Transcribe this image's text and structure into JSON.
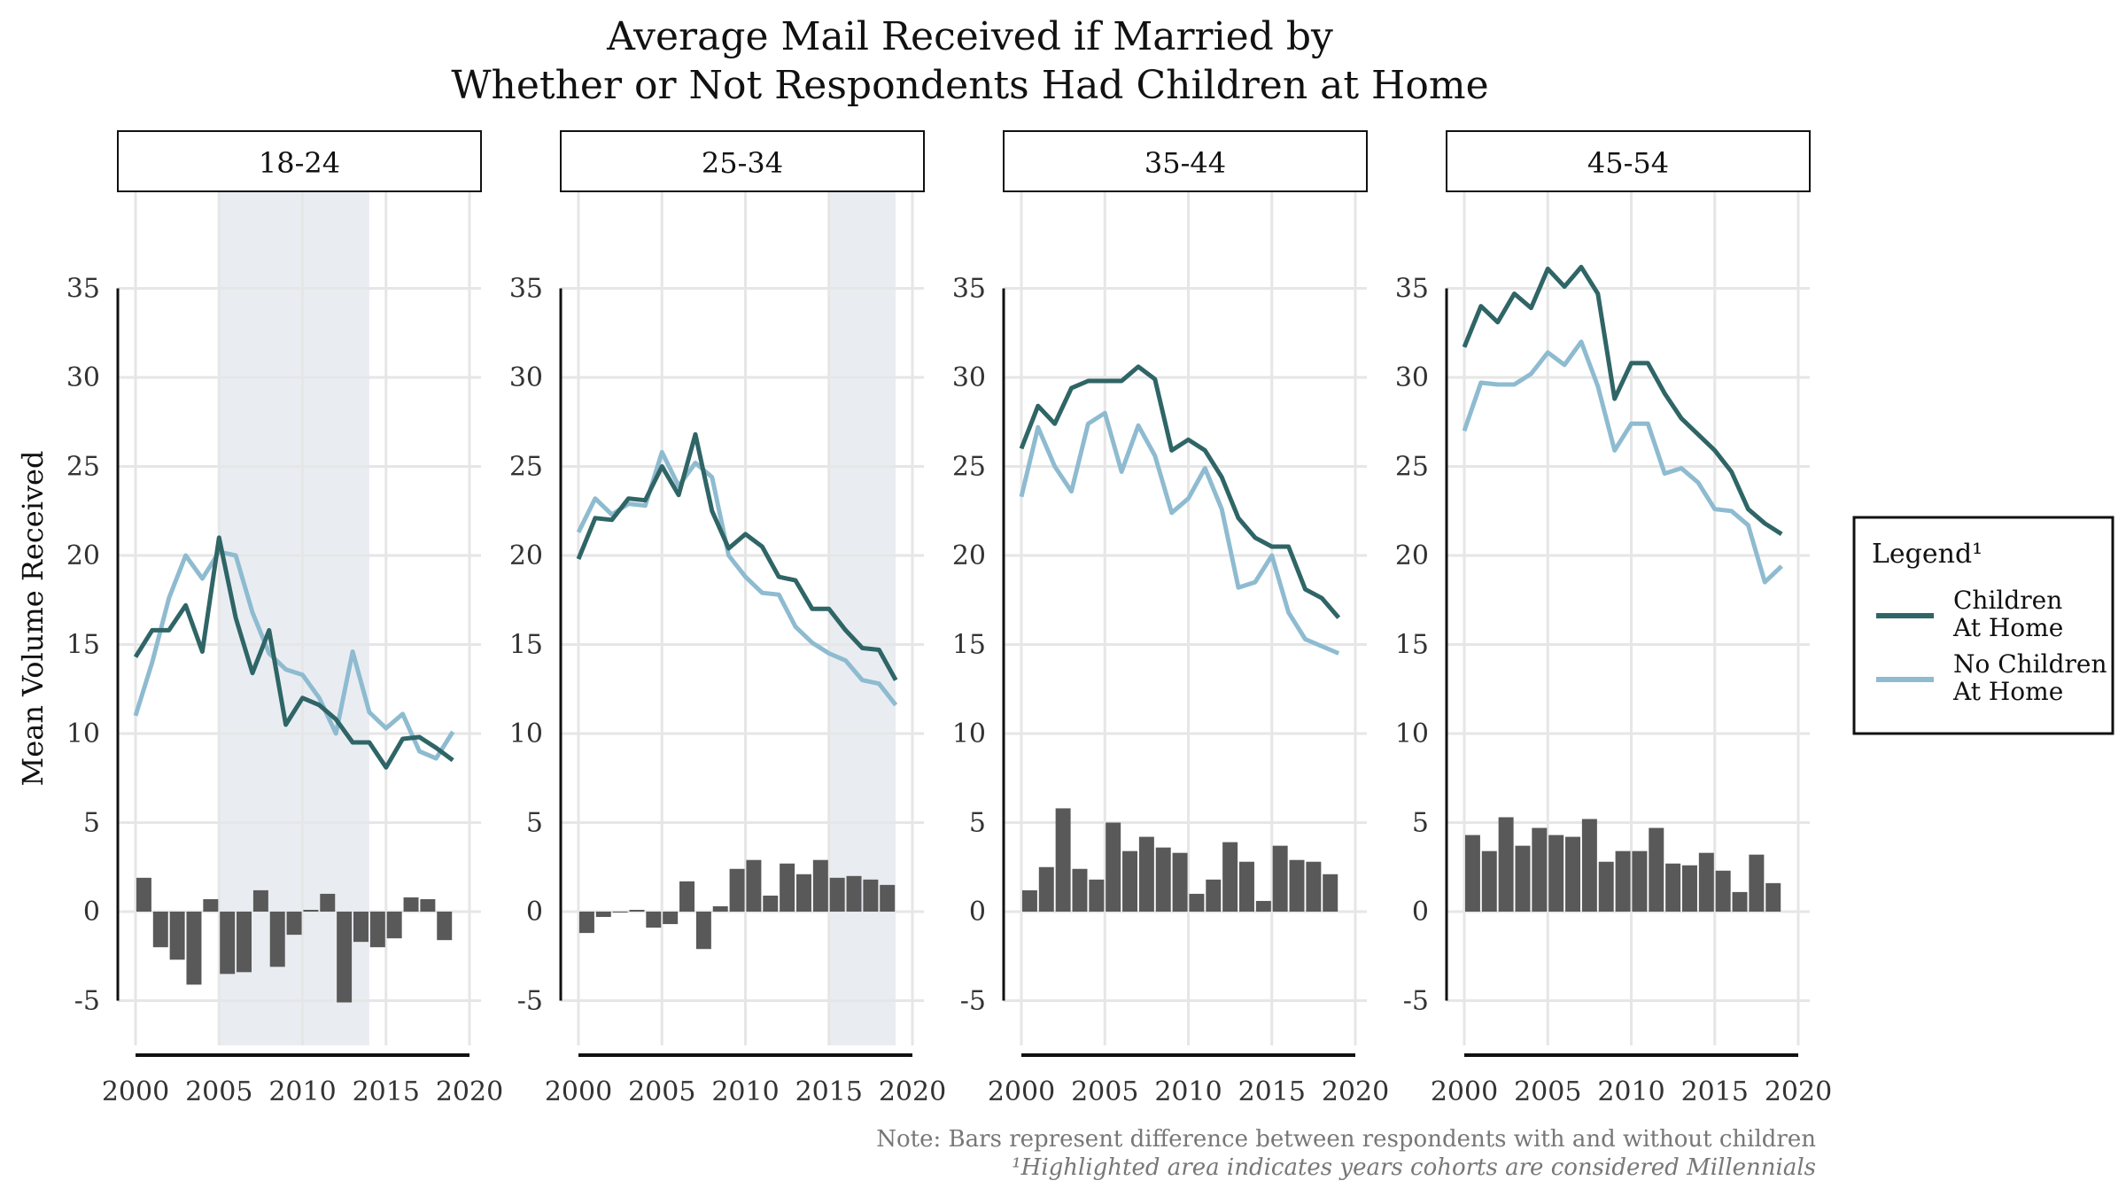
{
  "chart_data": {
    "type": "line",
    "title_lines": [
      "Average Mail Received if Married by",
      "Whether or Not Respondents Had Children at Home"
    ],
    "ylabel": "Mean Volume Received",
    "xlabel": "",
    "xlim": [
      1999,
      2020
    ],
    "ylim": [
      -7,
      37
    ],
    "x_ticks": [
      2000,
      2005,
      2010,
      2015,
      2020
    ],
    "y_ticks": [
      -5,
      0,
      5,
      10,
      15,
      20,
      25,
      30,
      35
    ],
    "grid": true,
    "legend": {
      "title": "Legend¹",
      "position": "right",
      "entries": [
        {
          "label_lines": [
            "Children",
            "At Home"
          ],
          "color": "#2f6566"
        },
        {
          "label_lines": [
            "No Children",
            "At Home"
          ],
          "color": "#8ebbd0"
        }
      ]
    },
    "colors": {
      "children": "#2f6566",
      "no_children": "#8ebbd0",
      "bars": "#595959",
      "highlight": "#e9edf1"
    },
    "years": [
      2000,
      2001,
      2002,
      2003,
      2004,
      2005,
      2006,
      2007,
      2008,
      2009,
      2010,
      2011,
      2012,
      2013,
      2014,
      2015,
      2016,
      2017,
      2018,
      2019
    ],
    "panels": [
      {
        "label": "18-24",
        "highlight": [
          2005,
          2014
        ],
        "children": [
          14.3,
          15.8,
          15.8,
          17.2,
          14.6,
          21.0,
          16.5,
          13.4,
          15.8,
          10.5,
          12.0,
          11.6,
          10.8,
          9.5,
          9.5,
          8.1,
          9.7,
          9.8,
          9.2,
          8.5
        ],
        "no_children": [
          11.0,
          14.0,
          17.6,
          20.0,
          18.7,
          20.2,
          20.0,
          16.8,
          14.5,
          13.6,
          13.3,
          12.0,
          10.0,
          14.6,
          11.2,
          10.3,
          11.1,
          9.0,
          8.6,
          10.1
        ],
        "diff": [
          1.9,
          -2.0,
          -2.7,
          -4.1,
          0.7,
          -3.5,
          -3.4,
          1.2,
          -3.1,
          -1.3,
          0.1,
          1.0,
          -5.1,
          -1.7,
          -2.0,
          -1.5,
          0.8,
          0.7,
          -1.6
        ]
      },
      {
        "label": "25-34",
        "highlight": [
          2015,
          2019
        ],
        "children": [
          19.8,
          22.1,
          22.0,
          23.2,
          23.1,
          25.0,
          23.4,
          26.8,
          22.5,
          20.4,
          21.2,
          20.5,
          18.8,
          18.6,
          17.0,
          17.0,
          15.8,
          14.8,
          14.7,
          13.0
        ],
        "no_children": [
          21.3,
          23.2,
          22.3,
          22.9,
          22.8,
          25.8,
          23.9,
          25.2,
          24.4,
          20.0,
          18.8,
          17.9,
          17.8,
          16.0,
          15.1,
          14.5,
          14.1,
          13.0,
          12.8,
          11.6
        ],
        "diff": [
          -1.2,
          -0.3,
          0.0,
          0.1,
          -0.9,
          -0.7,
          1.7,
          -2.1,
          0.3,
          2.4,
          2.9,
          0.9,
          2.7,
          2.1,
          2.9,
          1.9,
          2.0,
          1.8,
          1.5
        ]
      },
      {
        "label": "35-44",
        "highlight": null,
        "children": [
          26.0,
          28.4,
          27.4,
          29.4,
          29.8,
          29.8,
          29.8,
          30.6,
          29.9,
          25.9,
          26.5,
          25.9,
          24.4,
          22.1,
          21.0,
          20.5,
          20.5,
          18.1,
          17.6,
          16.5
        ],
        "no_children": [
          23.3,
          27.2,
          25.0,
          23.6,
          27.4,
          28.0,
          24.7,
          27.3,
          25.6,
          22.4,
          23.2,
          24.9,
          22.6,
          18.2,
          18.5,
          20.0,
          16.8,
          15.3,
          14.9,
          14.5
        ],
        "diff": [
          1.2,
          2.5,
          5.8,
          2.4,
          1.8,
          5.0,
          3.4,
          4.2,
          3.6,
          3.3,
          1.0,
          1.8,
          3.9,
          2.8,
          0.6,
          3.7,
          2.9,
          2.8,
          2.1
        ]
      },
      {
        "label": "45-54",
        "highlight": null,
        "children": [
          31.7,
          34.0,
          33.1,
          34.7,
          33.9,
          36.1,
          35.1,
          36.2,
          34.7,
          28.8,
          30.8,
          30.8,
          29.1,
          27.7,
          26.8,
          25.9,
          24.7,
          22.6,
          21.8,
          21.2
        ],
        "no_children": [
          27.0,
          29.7,
          29.6,
          29.6,
          30.2,
          31.4,
          30.7,
          32.0,
          29.5,
          25.9,
          27.4,
          27.4,
          24.6,
          24.9,
          24.1,
          22.6,
          22.5,
          21.7,
          18.5,
          19.4
        ],
        "diff": [
          4.3,
          3.4,
          5.3,
          3.7,
          4.7,
          4.3,
          4.2,
          5.2,
          2.8,
          3.4,
          3.4,
          4.7,
          2.7,
          2.6,
          3.3,
          2.3,
          1.1,
          3.2,
          1.6
        ]
      }
    ],
    "notes": [
      "Note: Bars represent difference between respondents with and without children",
      "¹Highlighted area indicates years cohorts are considered Millennials"
    ]
  }
}
